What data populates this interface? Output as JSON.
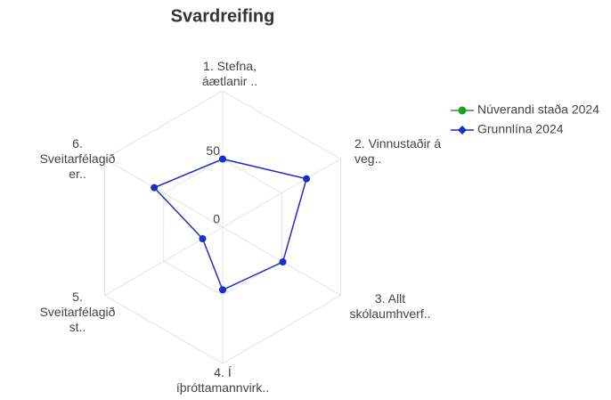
{
  "chart_data": {
    "type": "radar",
    "title": "Svardreifing",
    "categories": [
      "1. Stefna, áætlanir ..",
      "2. Vinnustaðir á veg..",
      "3. Allt skólaumhverf..",
      "4. Í íþróttamannvirk..",
      "5. Sveitarfélagið st..",
      "6. Sveitarfélagið er.."
    ],
    "series": [
      {
        "name": "Núverandi staða 2024",
        "color": "#1ca01c",
        "values": [
          null,
          null,
          null,
          null,
          null,
          null
        ]
      },
      {
        "name": "Grunnlína 2024",
        "color": "#1a2fc8",
        "values": [
          50,
          71,
          51,
          46,
          17,
          58
        ]
      }
    ],
    "ylim": [
      0,
      100
    ],
    "yticks": [
      0,
      50
    ],
    "grid": true
  }
}
